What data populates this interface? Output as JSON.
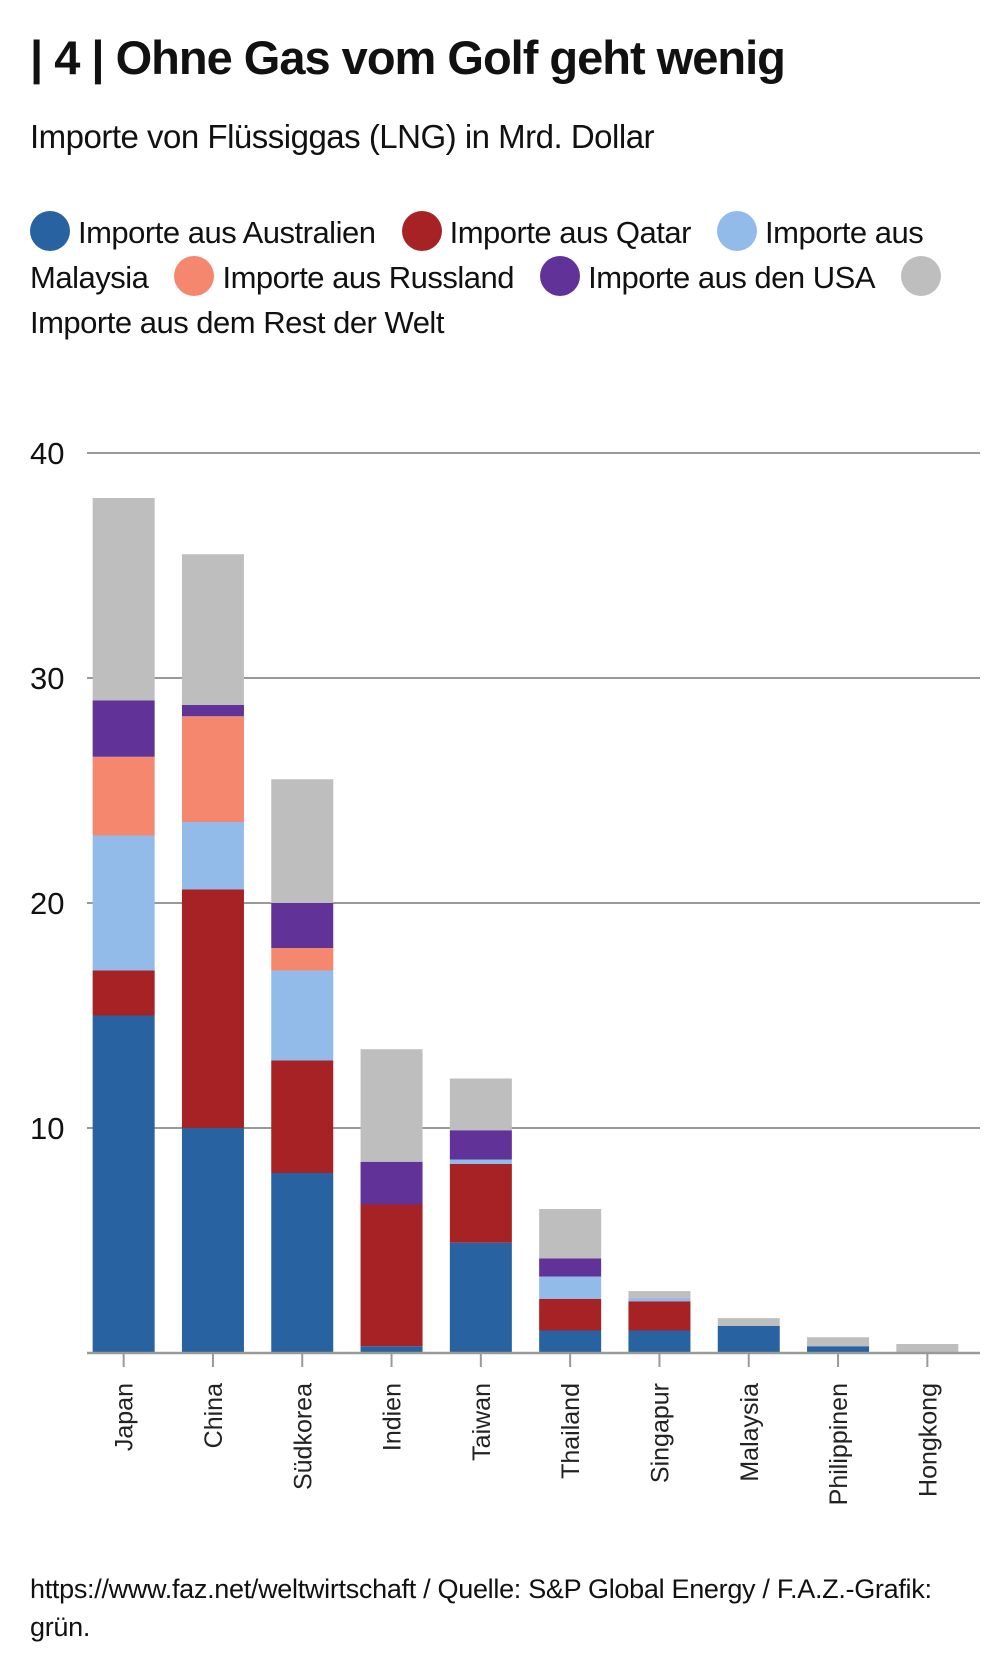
{
  "title": "| 4 | Ohne Gas vom Golf geht wenig",
  "subtitle": "Importe von Flüssiggas (LNG) in Mrd. Dollar",
  "footer": "https://www.faz.net/weltwirtschaft / Quelle: S&P Global Energy / F.A.Z.-Grafik: grün.",
  "chart_data": {
    "type": "bar",
    "stacked": true,
    "title": "| 4 | Ohne Gas vom Golf geht wenig",
    "subtitle": "Importe von Flüssiggas (LNG) in Mrd. Dollar",
    "xlabel": "",
    "ylabel": "",
    "ylim": [
      0,
      40
    ],
    "yticks": [
      10,
      20,
      30,
      40
    ],
    "grid": true,
    "legend_position": "top",
    "categories": [
      "Japan",
      "China",
      "Südkorea",
      "Indien",
      "Taiwan",
      "Thailand",
      "Singapur",
      "Malaysia",
      "Philippinen",
      "Hongkong"
    ],
    "series": [
      {
        "name": "Importe aus Australien",
        "color": "#2862a0",
        "values": [
          15.0,
          10.0,
          8.0,
          0.3,
          4.9,
          1.0,
          1.0,
          1.2,
          0.3,
          0.0
        ]
      },
      {
        "name": "Importe aus Qatar",
        "color": "#a62225",
        "values": [
          2.0,
          10.6,
          5.0,
          6.3,
          3.5,
          1.4,
          1.3,
          0.0,
          0.0,
          0.0
        ]
      },
      {
        "name": "Importe aus Malaysia",
        "color": "#93bbea",
        "values": [
          6.0,
          3.0,
          4.0,
          0.0,
          0.2,
          1.0,
          0.15,
          0.0,
          0.0,
          0.0
        ]
      },
      {
        "name": "Importe aus Russland",
        "color": "#f6876f",
        "values": [
          3.5,
          4.7,
          1.0,
          0.0,
          0.0,
          0.0,
          0.0,
          0.0,
          0.0,
          0.0
        ]
      },
      {
        "name": "Importe aus den USA",
        "color": "#613298",
        "values": [
          2.5,
          0.5,
          2.0,
          1.9,
          1.3,
          0.8,
          0.0,
          0.0,
          0.0,
          0.0
        ]
      },
      {
        "name": "Importe aus dem Rest der Welt",
        "color": "#bebebe",
        "values": [
          9.0,
          6.7,
          5.5,
          5.0,
          2.3,
          2.2,
          0.3,
          0.35,
          0.4,
          0.4
        ]
      }
    ]
  }
}
